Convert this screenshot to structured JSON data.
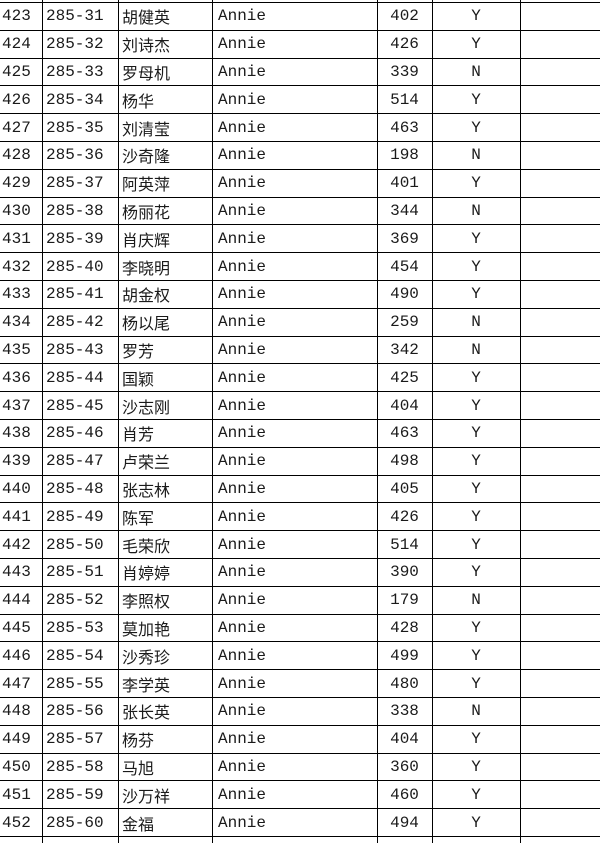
{
  "table": {
    "column_keys": [
      "num",
      "id",
      "name",
      "teacher",
      "score",
      "flag",
      "blank"
    ],
    "rows": [
      {
        "num": "423",
        "id": "285-31",
        "name": "胡健英",
        "teacher": "Annie",
        "score": "402",
        "flag": "Y",
        "blank": ""
      },
      {
        "num": "424",
        "id": "285-32",
        "name": "刘诗杰",
        "teacher": "Annie",
        "score": "426",
        "flag": "Y",
        "blank": ""
      },
      {
        "num": "425",
        "id": "285-33",
        "name": "罗母机",
        "teacher": "Annie",
        "score": "339",
        "flag": "N",
        "blank": ""
      },
      {
        "num": "426",
        "id": "285-34",
        "name": "杨华",
        "teacher": "Annie",
        "score": "514",
        "flag": "Y",
        "blank": ""
      },
      {
        "num": "427",
        "id": "285-35",
        "name": "刘清莹",
        "teacher": "Annie",
        "score": "463",
        "flag": "Y",
        "blank": ""
      },
      {
        "num": "428",
        "id": "285-36",
        "name": "沙奇隆",
        "teacher": "Annie",
        "score": "198",
        "flag": "N",
        "blank": ""
      },
      {
        "num": "429",
        "id": "285-37",
        "name": "阿英萍",
        "teacher": "Annie",
        "score": "401",
        "flag": "Y",
        "blank": ""
      },
      {
        "num": "430",
        "id": "285-38",
        "name": "杨丽花",
        "teacher": "Annie",
        "score": "344",
        "flag": "N",
        "blank": ""
      },
      {
        "num": "431",
        "id": "285-39",
        "name": "肖庆辉",
        "teacher": "Annie",
        "score": "369",
        "flag": "Y",
        "blank": ""
      },
      {
        "num": "432",
        "id": "285-40",
        "name": "李晓明",
        "teacher": "Annie",
        "score": "454",
        "flag": "Y",
        "blank": ""
      },
      {
        "num": "433",
        "id": "285-41",
        "name": "胡金权",
        "teacher": "Annie",
        "score": "490",
        "flag": "Y",
        "blank": ""
      },
      {
        "num": "434",
        "id": "285-42",
        "name": "杨以尾",
        "teacher": "Annie",
        "score": "259",
        "flag": "N",
        "blank": ""
      },
      {
        "num": "435",
        "id": "285-43",
        "name": "罗芳",
        "teacher": "Annie",
        "score": "342",
        "flag": "N",
        "blank": ""
      },
      {
        "num": "436",
        "id": "285-44",
        "name": "国颖",
        "teacher": "Annie",
        "score": "425",
        "flag": "Y",
        "blank": ""
      },
      {
        "num": "437",
        "id": "285-45",
        "name": "沙志刚",
        "teacher": "Annie",
        "score": "404",
        "flag": "Y",
        "blank": ""
      },
      {
        "num": "438",
        "id": "285-46",
        "name": "肖芳",
        "teacher": "Annie",
        "score": "463",
        "flag": "Y",
        "blank": ""
      },
      {
        "num": "439",
        "id": "285-47",
        "name": "卢荣兰",
        "teacher": "Annie",
        "score": "498",
        "flag": "Y",
        "blank": ""
      },
      {
        "num": "440",
        "id": "285-48",
        "name": "张志林",
        "teacher": "Annie",
        "score": "405",
        "flag": "Y",
        "blank": ""
      },
      {
        "num": "441",
        "id": "285-49",
        "name": "陈军",
        "teacher": "Annie",
        "score": "426",
        "flag": "Y",
        "blank": ""
      },
      {
        "num": "442",
        "id": "285-50",
        "name": "毛荣欣",
        "teacher": "Annie",
        "score": "514",
        "flag": "Y",
        "blank": ""
      },
      {
        "num": "443",
        "id": "285-51",
        "name": "肖婷婷",
        "teacher": "Annie",
        "score": "390",
        "flag": "Y",
        "blank": ""
      },
      {
        "num": "444",
        "id": "285-52",
        "name": "李照权",
        "teacher": "Annie",
        "score": "179",
        "flag": "N",
        "blank": ""
      },
      {
        "num": "445",
        "id": "285-53",
        "name": "莫加艳",
        "teacher": "Annie",
        "score": "428",
        "flag": "Y",
        "blank": ""
      },
      {
        "num": "446",
        "id": "285-54",
        "name": "沙秀珍",
        "teacher": "Annie",
        "score": "499",
        "flag": "Y",
        "blank": ""
      },
      {
        "num": "447",
        "id": "285-55",
        "name": "李学英",
        "teacher": "Annie",
        "score": "480",
        "flag": "Y",
        "blank": ""
      },
      {
        "num": "448",
        "id": "285-56",
        "name": "张长英",
        "teacher": "Annie",
        "score": "338",
        "flag": "N",
        "blank": ""
      },
      {
        "num": "449",
        "id": "285-57",
        "name": "杨芬",
        "teacher": "Annie",
        "score": "404",
        "flag": "Y",
        "blank": ""
      },
      {
        "num": "450",
        "id": "285-58",
        "name": "马旭",
        "teacher": "Annie",
        "score": "360",
        "flag": "Y",
        "blank": ""
      },
      {
        "num": "451",
        "id": "285-59",
        "name": "沙万祥",
        "teacher": "Annie",
        "score": "460",
        "flag": "Y",
        "blank": ""
      },
      {
        "num": "452",
        "id": "285-60",
        "name": "金福",
        "teacher": "Annie",
        "score": "494",
        "flag": "Y",
        "blank": ""
      }
    ]
  },
  "colors": {
    "grid_line": "#000000",
    "text": "#1a1a1a",
    "background": "#ffffff"
  }
}
